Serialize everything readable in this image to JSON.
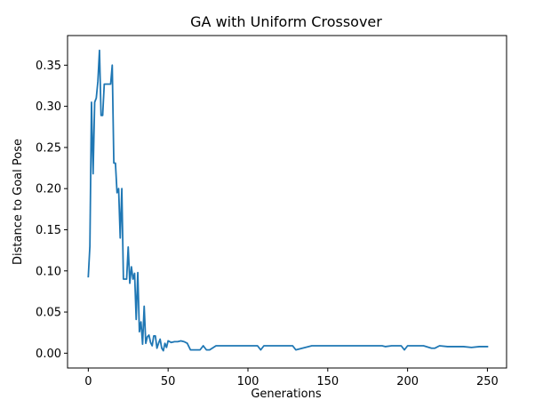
{
  "chart_data": {
    "type": "line",
    "title": "GA with Uniform Crossover",
    "xlabel": "Generations",
    "ylabel": "Distance to Goal Pose",
    "xlim": [
      -13,
      262
    ],
    "ylim": [
      -0.018,
      0.386
    ],
    "xticks": [
      0,
      50,
      100,
      150,
      200,
      250
    ],
    "xtick_labels": [
      "0",
      "50",
      "100",
      "150",
      "200",
      "250"
    ],
    "yticks": [
      0.0,
      0.05,
      0.1,
      0.15,
      0.2,
      0.25,
      0.3,
      0.35
    ],
    "ytick_labels": [
      "0.00",
      "0.05",
      "0.10",
      "0.15",
      "0.20",
      "0.25",
      "0.30",
      "0.35"
    ],
    "grid": false,
    "line_color": "#1f77b4",
    "series": [
      {
        "x": [
          0,
          1,
          2,
          3,
          4,
          5,
          6,
          7,
          8,
          9,
          10,
          11,
          12,
          13,
          14,
          15,
          16,
          17,
          18,
          19,
          20,
          21,
          22,
          23,
          24,
          25,
          26,
          27,
          28,
          29,
          30,
          31,
          32,
          33,
          34,
          35,
          36,
          37,
          38,
          39,
          40,
          41,
          42,
          43,
          44,
          45,
          46,
          47,
          48,
          49,
          50,
          52,
          54,
          56,
          58,
          60,
          62,
          64,
          66,
          68,
          70,
          72,
          74,
          76,
          80,
          90,
          100,
          102,
          104,
          106,
          108,
          110,
          115,
          120,
          124,
          126,
          128,
          130,
          140,
          150,
          160,
          170,
          180,
          184,
          186,
          190,
          192,
          194,
          196,
          198,
          200,
          202,
          205,
          208,
          210,
          215,
          217,
          220,
          225,
          230,
          232,
          235,
          240,
          245,
          250
        ],
        "y": [
          0.093,
          0.13,
          0.305,
          0.218,
          0.305,
          0.31,
          0.33,
          0.368,
          0.289,
          0.289,
          0.327,
          0.327,
          0.327,
          0.327,
          0.327,
          0.35,
          0.231,
          0.231,
          0.195,
          0.2,
          0.14,
          0.2,
          0.09,
          0.09,
          0.09,
          0.129,
          0.085,
          0.105,
          0.09,
          0.097,
          0.041,
          0.098,
          0.026,
          0.038,
          0.011,
          0.057,
          0.012,
          0.02,
          0.022,
          0.013,
          0.009,
          0.021,
          0.021,
          0.006,
          0.012,
          0.017,
          0.006,
          0.003,
          0.012,
          0.007,
          0.015,
          0.013,
          0.014,
          0.014,
          0.015,
          0.014,
          0.012,
          0.004,
          0.004,
          0.004,
          0.004,
          0.009,
          0.004,
          0.004,
          0.009,
          0.009,
          0.009,
          0.009,
          0.009,
          0.009,
          0.004,
          0.009,
          0.009,
          0.009,
          0.009,
          0.009,
          0.009,
          0.004,
          0.009,
          0.009,
          0.009,
          0.009,
          0.009,
          0.009,
          0.008,
          0.009,
          0.009,
          0.009,
          0.009,
          0.004,
          0.009,
          0.009,
          0.009,
          0.009,
          0.009,
          0.006,
          0.006,
          0.009,
          0.008,
          0.008,
          0.008,
          0.008,
          0.007,
          0.008,
          0.008
        ]
      }
    ]
  }
}
